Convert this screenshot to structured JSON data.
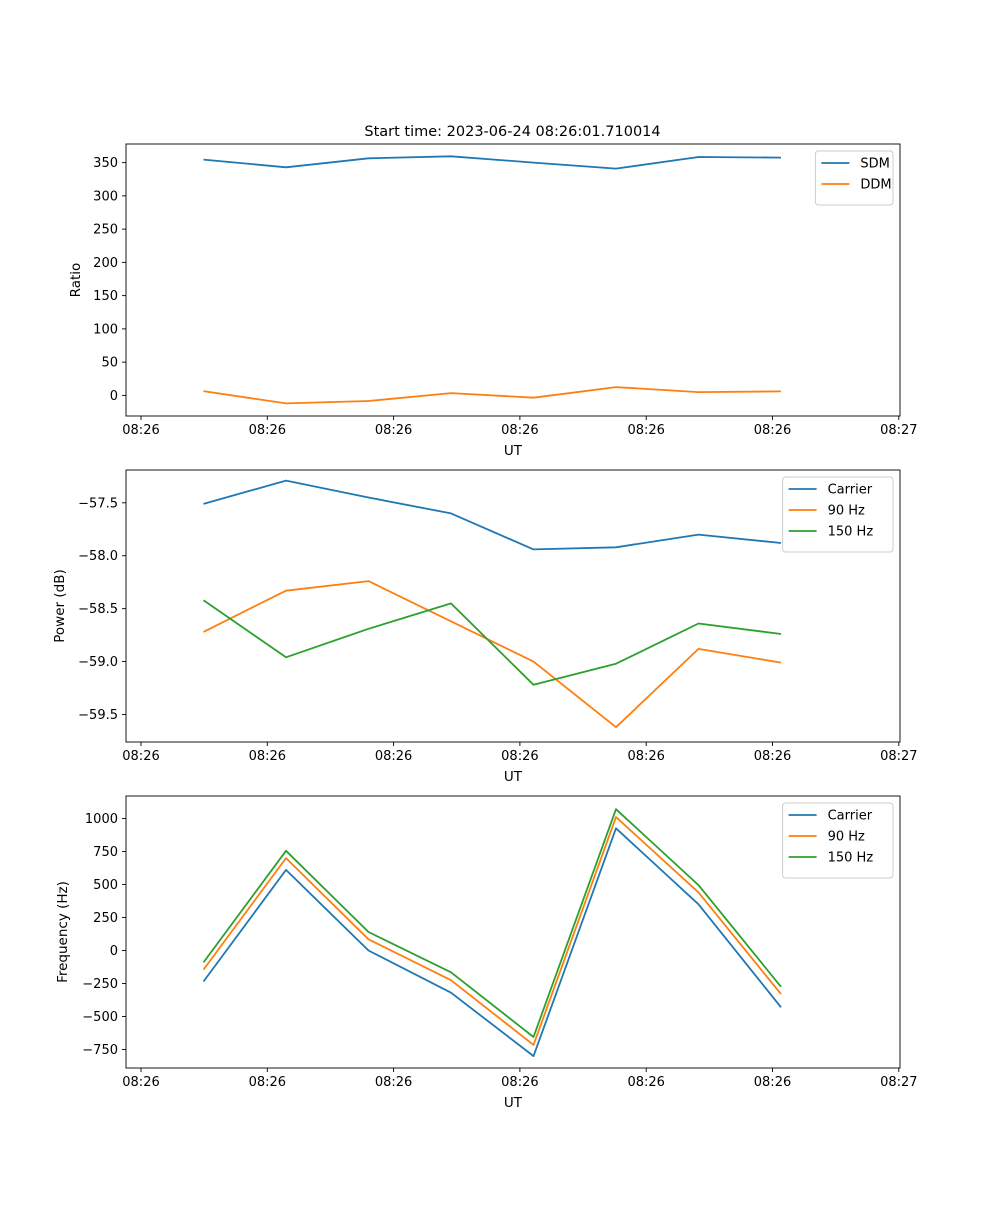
{
  "figure": {
    "title": "Start time: 2023-06-24 08:26:01.710014"
  },
  "chart_data": [
    {
      "type": "line",
      "title": "Start time: 2023-06-24 08:26:01.710014",
      "xlabel": "UT",
      "ylabel": "Ratio",
      "x_tick_labels": [
        "08:26",
        "08:26",
        "08:26",
        "08:26",
        "08:26",
        "08:26",
        "08:26"
      ],
      "x_extra_tick_label": "08:27",
      "y_ticks": [
        0,
        50,
        100,
        150,
        200,
        250,
        300,
        350
      ],
      "ylim": [
        -31,
        378
      ],
      "legend_position": "upper right",
      "series": [
        {
          "name": "SDM",
          "color": "#1f77b4",
          "values": [
            354.5,
            343,
            356.5,
            359.5,
            350,
            341,
            358.5,
            357.5
          ]
        },
        {
          "name": "DDM",
          "color": "#ff7f0e",
          "values": [
            6.5,
            -12,
            -8.5,
            3.5,
            -3.5,
            12.5,
            5,
            6
          ]
        }
      ]
    },
    {
      "type": "line",
      "title": "",
      "xlabel": "UT",
      "ylabel": "Power (dB)",
      "x_tick_labels": [
        "08:26",
        "08:26",
        "08:26",
        "08:26",
        "08:26",
        "08:26",
        "08:26"
      ],
      "x_extra_tick_label": "08:27",
      "y_ticks": [
        -59.5,
        -59.0,
        -58.5,
        -58.0,
        -57.5
      ],
      "y_tick_labels": [
        "−59.5",
        "−59.0",
        "−58.5",
        "−58.0",
        "−57.5"
      ],
      "ylim": [
        -59.76,
        -57.19
      ],
      "legend_position": "upper right",
      "series": [
        {
          "name": "Carrier",
          "color": "#1f77b4",
          "values": [
            -57.51,
            -57.29,
            -57.45,
            -57.6,
            -57.94,
            -57.92,
            -57.8,
            -57.88
          ]
        },
        {
          "name": "90 Hz",
          "color": "#ff7f0e",
          "values": [
            -58.72,
            -58.33,
            -58.24,
            -58.62,
            -59.0,
            -59.62,
            -58.88,
            -59.01
          ]
        },
        {
          "name": "150 Hz",
          "color": "#2ca02c",
          "values": [
            -58.42,
            -58.96,
            -58.69,
            -58.45,
            -59.22,
            -59.02,
            -58.64,
            -58.74
          ]
        }
      ]
    },
    {
      "type": "line",
      "title": "",
      "xlabel": "UT",
      "ylabel": "Frequency (Hz)",
      "x_tick_labels": [
        "08:26",
        "08:26",
        "08:26",
        "08:26",
        "08:26",
        "08:26",
        "08:26"
      ],
      "x_extra_tick_label": "08:27",
      "y_ticks": [
        -750,
        -500,
        -250,
        0,
        250,
        500,
        750,
        1000
      ],
      "y_tick_labels": [
        "−750",
        "−500",
        "−250",
        "0",
        "250",
        "500",
        "750",
        "1000"
      ],
      "ylim": [
        -890,
        1170
      ],
      "legend_position": "upper right",
      "series": [
        {
          "name": "Carrier",
          "color": "#1f77b4",
          "values": [
            -235,
            610,
            0,
            -320,
            -800,
            925,
            350,
            -430
          ]
        },
        {
          "name": "90 Hz",
          "color": "#ff7f0e",
          "values": [
            -145,
            700,
            85,
            -225,
            -715,
            1010,
            440,
            -330
          ]
        },
        {
          "name": "150 Hz",
          "color": "#2ca02c",
          "values": [
            -90,
            755,
            140,
            -165,
            -655,
            1070,
            495,
            -275
          ]
        }
      ]
    }
  ]
}
